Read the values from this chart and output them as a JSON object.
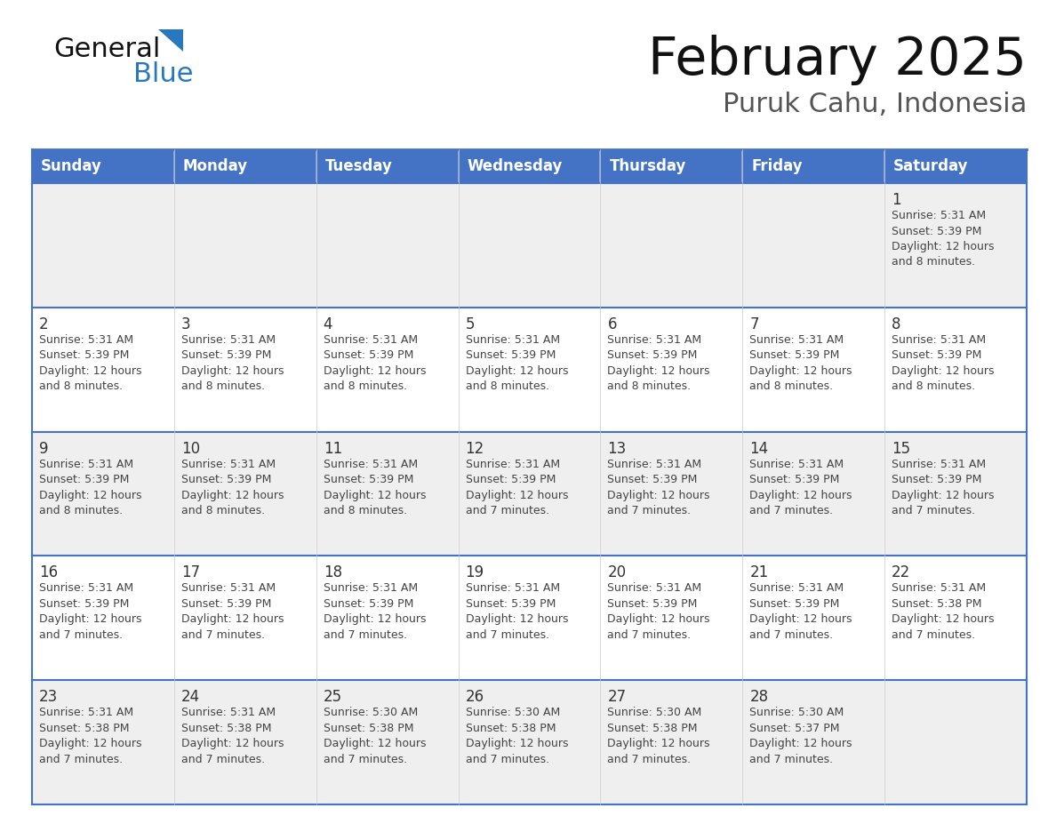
{
  "title": "February 2025",
  "subtitle": "Puruk Cahu, Indonesia",
  "days_of_week": [
    "Sunday",
    "Monday",
    "Tuesday",
    "Wednesday",
    "Thursday",
    "Friday",
    "Saturday"
  ],
  "header_bg": "#4472C4",
  "header_text": "#FFFFFF",
  "cell_bg_row0": "#EFEFEF",
  "cell_bg_row1": "#FFFFFF",
  "cell_bg_row2": "#EFEFEF",
  "cell_bg_row3": "#FFFFFF",
  "cell_bg_row4": "#EFEFEF",
  "border_color": "#4472C4",
  "grid_color": "#B0B8D0",
  "text_color": "#333333",
  "info_text_color": "#444444",
  "day_num_color": "#333333",
  "calendar_data": [
    [
      null,
      null,
      null,
      null,
      null,
      null,
      1
    ],
    [
      2,
      3,
      4,
      5,
      6,
      7,
      8
    ],
    [
      9,
      10,
      11,
      12,
      13,
      14,
      15
    ],
    [
      16,
      17,
      18,
      19,
      20,
      21,
      22
    ],
    [
      23,
      24,
      25,
      26,
      27,
      28,
      null
    ]
  ],
  "cell_info": {
    "1": {
      "sunrise": "5:31 AM",
      "sunset": "5:39 PM",
      "daylight": "12 hours and 8 minutes."
    },
    "2": {
      "sunrise": "5:31 AM",
      "sunset": "5:39 PM",
      "daylight": "12 hours and 8 minutes."
    },
    "3": {
      "sunrise": "5:31 AM",
      "sunset": "5:39 PM",
      "daylight": "12 hours and 8 minutes."
    },
    "4": {
      "sunrise": "5:31 AM",
      "sunset": "5:39 PM",
      "daylight": "12 hours and 8 minutes."
    },
    "5": {
      "sunrise": "5:31 AM",
      "sunset": "5:39 PM",
      "daylight": "12 hours and 8 minutes."
    },
    "6": {
      "sunrise": "5:31 AM",
      "sunset": "5:39 PM",
      "daylight": "12 hours and 8 minutes."
    },
    "7": {
      "sunrise": "5:31 AM",
      "sunset": "5:39 PM",
      "daylight": "12 hours and 8 minutes."
    },
    "8": {
      "sunrise": "5:31 AM",
      "sunset": "5:39 PM",
      "daylight": "12 hours and 8 minutes."
    },
    "9": {
      "sunrise": "5:31 AM",
      "sunset": "5:39 PM",
      "daylight": "12 hours and 8 minutes."
    },
    "10": {
      "sunrise": "5:31 AM",
      "sunset": "5:39 PM",
      "daylight": "12 hours and 8 minutes."
    },
    "11": {
      "sunrise": "5:31 AM",
      "sunset": "5:39 PM",
      "daylight": "12 hours and 8 minutes."
    },
    "12": {
      "sunrise": "5:31 AM",
      "sunset": "5:39 PM",
      "daylight": "12 hours and 7 minutes."
    },
    "13": {
      "sunrise": "5:31 AM",
      "sunset": "5:39 PM",
      "daylight": "12 hours and 7 minutes."
    },
    "14": {
      "sunrise": "5:31 AM",
      "sunset": "5:39 PM",
      "daylight": "12 hours and 7 minutes."
    },
    "15": {
      "sunrise": "5:31 AM",
      "sunset": "5:39 PM",
      "daylight": "12 hours and 7 minutes."
    },
    "16": {
      "sunrise": "5:31 AM",
      "sunset": "5:39 PM",
      "daylight": "12 hours and 7 minutes."
    },
    "17": {
      "sunrise": "5:31 AM",
      "sunset": "5:39 PM",
      "daylight": "12 hours and 7 minutes."
    },
    "18": {
      "sunrise": "5:31 AM",
      "sunset": "5:39 PM",
      "daylight": "12 hours and 7 minutes."
    },
    "19": {
      "sunrise": "5:31 AM",
      "sunset": "5:39 PM",
      "daylight": "12 hours and 7 minutes."
    },
    "20": {
      "sunrise": "5:31 AM",
      "sunset": "5:39 PM",
      "daylight": "12 hours and 7 minutes."
    },
    "21": {
      "sunrise": "5:31 AM",
      "sunset": "5:39 PM",
      "daylight": "12 hours and 7 minutes."
    },
    "22": {
      "sunrise": "5:31 AM",
      "sunset": "5:38 PM",
      "daylight": "12 hours and 7 minutes."
    },
    "23": {
      "sunrise": "5:31 AM",
      "sunset": "5:38 PM",
      "daylight": "12 hours and 7 minutes."
    },
    "24": {
      "sunrise": "5:31 AM",
      "sunset": "5:38 PM",
      "daylight": "12 hours and 7 minutes."
    },
    "25": {
      "sunrise": "5:30 AM",
      "sunset": "5:38 PM",
      "daylight": "12 hours and 7 minutes."
    },
    "26": {
      "sunrise": "5:30 AM",
      "sunset": "5:38 PM",
      "daylight": "12 hours and 7 minutes."
    },
    "27": {
      "sunrise": "5:30 AM",
      "sunset": "5:38 PM",
      "daylight": "12 hours and 7 minutes."
    },
    "28": {
      "sunrise": "5:30 AM",
      "sunset": "5:37 PM",
      "daylight": "12 hours and 7 minutes."
    }
  },
  "logo_color_general": "#111111",
  "logo_color_blue": "#2878C0",
  "logo_triangle_color": "#2878C0"
}
